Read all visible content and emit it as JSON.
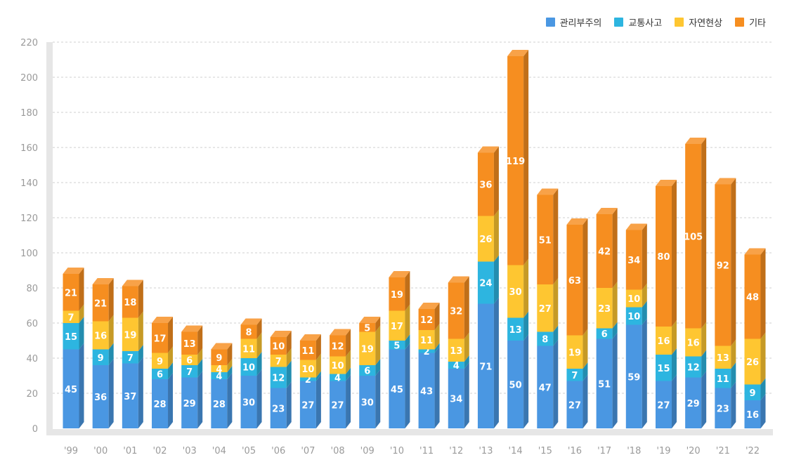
{
  "chart_data": {
    "type": "bar",
    "stacked": true,
    "categories": [
      "'99",
      "'00",
      "'01",
      "'02",
      "'03",
      "'04",
      "'05",
      "'06",
      "'07",
      "'08",
      "'09",
      "'10",
      "'11",
      "'12",
      "'13",
      "'14",
      "'15",
      "'16",
      "'17",
      "'18",
      "'19",
      "'20",
      "'21",
      "'22"
    ],
    "series": [
      {
        "name": "관리부주의",
        "color": "#4a97e2",
        "values": [
          45,
          36,
          37,
          28,
          29,
          28,
          30,
          23,
          27,
          27,
          30,
          45,
          43,
          34,
          71,
          50,
          47,
          27,
          51,
          59,
          27,
          29,
          23,
          16
        ]
      },
      {
        "name": "교통사고",
        "color": "#2db5e0",
        "values": [
          15,
          9,
          7,
          6,
          7,
          4,
          10,
          12,
          2,
          4,
          6,
          5,
          2,
          4,
          24,
          13,
          8,
          7,
          6,
          10,
          15,
          12,
          11,
          9
        ]
      },
      {
        "name": "자연현상",
        "color": "#fec631",
        "values": [
          7,
          16,
          19,
          9,
          6,
          4,
          11,
          7,
          10,
          10,
          19,
          17,
          11,
          13,
          26,
          30,
          27,
          19,
          23,
          10,
          16,
          16,
          13,
          26
        ]
      },
      {
        "name": "기타",
        "color": "#f68e20",
        "values": [
          21,
          21,
          18,
          17,
          13,
          9,
          8,
          10,
          11,
          12,
          5,
          19,
          12,
          32,
          36,
          119,
          51,
          63,
          42,
          34,
          80,
          105,
          92,
          48
        ]
      }
    ],
    "ylim": [
      0,
      220
    ],
    "yticks": [
      0,
      20,
      40,
      60,
      80,
      100,
      120,
      140,
      160,
      180,
      200,
      220
    ],
    "grid": true,
    "legend_position": "top-right"
  }
}
